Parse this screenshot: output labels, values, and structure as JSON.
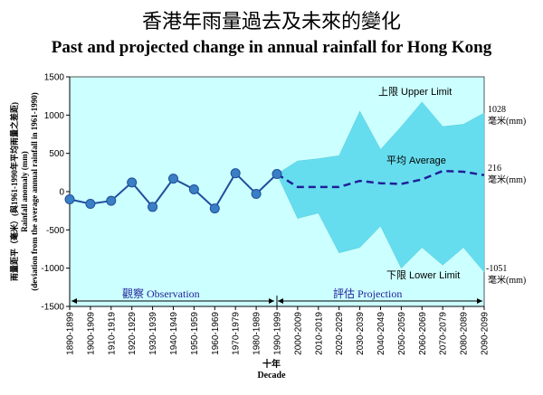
{
  "title_zh": "香港年雨量過去及未來的變化",
  "title_en": "Past and projected change in annual rainfall for Hong Kong",
  "chart_data": {
    "type": "line",
    "ylim": [
      -1500,
      1500
    ],
    "yticks": [
      "1500",
      "1000",
      "500",
      "0",
      "-500",
      "-1000",
      "-1500"
    ],
    "ytick_values": [
      1500,
      1000,
      500,
      0,
      -500,
      -1000,
      -1500
    ],
    "categories": [
      "1890-1899",
      "1900-1909",
      "1910-1919",
      "1920-1929",
      "1930-1939",
      "1940-1949",
      "1950-1959",
      "1960-1969",
      "1970-1979",
      "1980-1989",
      "1990-1999",
      "2000-2009",
      "2010-2019",
      "2020-2029",
      "2030-2039",
      "2040-2049",
      "2050-2059",
      "2060-2069",
      "2070-2079",
      "2080-2089",
      "2090-2099"
    ],
    "observation": [
      -100,
      -160,
      -120,
      120,
      -200,
      170,
      30,
      -220,
      240,
      -30,
      230
    ],
    "projected_average": [
      230,
      60,
      60,
      60,
      140,
      110,
      100,
      160,
      270,
      260,
      216
    ],
    "projected_upper": [
      230,
      400,
      430,
      470,
      1050,
      550,
      850,
      1170,
      850,
      880,
      1028
    ],
    "projected_lower": [
      230,
      -350,
      -280,
      -800,
      -730,
      -450,
      -1000,
      -730,
      -960,
      -730,
      -1051
    ],
    "xlabel_zh": "十年",
    "xlabel_en": "Decade",
    "ylabel_lines": [
      "雨量距平（毫米）(與1961-1990年平均雨量之差距)",
      "Rainfall anomaly (mm)",
      "(deviation from the average annual rainfall in 1961-1990)"
    ],
    "upper_label": "上限 Upper Limit",
    "average_label": "平均 Average",
    "lower_label": "下限 Lower Limit",
    "upper_end_value": "1028",
    "average_end_value": "216",
    "lower_end_value": "-1051",
    "unit": "毫米(mm)",
    "observation_label": "觀察 Observation",
    "projection_label": "評估 Projection",
    "grid": false,
    "colors": {
      "background": "#ccffff",
      "band": "#66ddee",
      "observation_line": "#1f4e9c",
      "marker": "#3a7fc4",
      "average_line": "#1f1f99"
    }
  }
}
